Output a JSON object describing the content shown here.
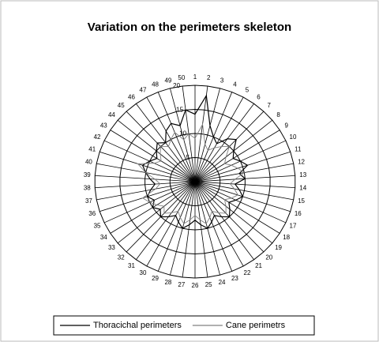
{
  "chart_data": {
    "type": "radar",
    "title": "Variation on the perimeters skeleton",
    "categories": [
      "1",
      "2",
      "3",
      "4",
      "5",
      "6",
      "7",
      "8",
      "9",
      "10",
      "11",
      "12",
      "13",
      "14",
      "15",
      "16",
      "17",
      "18",
      "19",
      "20",
      "21",
      "22",
      "23",
      "24",
      "25",
      "26",
      "27",
      "28",
      "29",
      "30",
      "31",
      "32",
      "33",
      "34",
      "35",
      "36",
      "37",
      "38",
      "39",
      "40",
      "41",
      "42",
      "43",
      "44",
      "45",
      "46",
      "47",
      "48",
      "49",
      "50"
    ],
    "series": [
      {
        "name": "Thoracichal perimeters",
        "color": "#000000",
        "values": [
          14,
          18,
          12,
          10,
          9,
          11,
          12,
          10,
          9,
          10,
          11,
          9,
          10,
          8,
          9,
          10,
          9,
          8,
          9,
          10,
          9,
          8,
          9,
          10,
          9,
          8,
          9,
          10,
          9,
          8,
          9,
          10,
          9,
          10,
          9,
          10,
          9,
          8,
          9,
          10,
          11,
          10,
          9,
          10,
          11,
          10,
          12,
          13,
          12,
          15
        ]
      },
      {
        "name": "Cane perimetrs",
        "color": "#808080",
        "values": [
          9,
          12,
          8,
          7,
          8,
          9,
          10,
          8,
          7,
          8,
          9,
          10,
          8,
          7,
          8,
          9,
          8,
          7,
          8,
          9,
          8,
          7,
          8,
          9,
          8,
          7,
          8,
          9,
          8,
          7,
          8,
          9,
          8,
          9,
          10,
          11,
          8,
          7,
          8,
          10,
          12,
          9,
          8,
          9,
          10,
          9,
          10,
          11,
          9,
          10
        ]
      }
    ],
    "ylim": [
      0,
      20
    ],
    "yticks": [
      0,
      5,
      10,
      15,
      20
    ]
  }
}
